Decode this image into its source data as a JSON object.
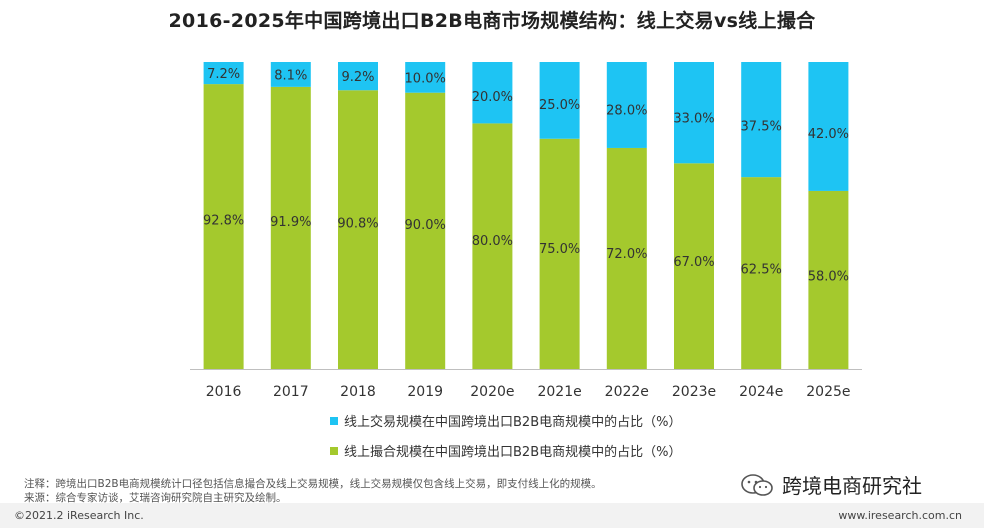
{
  "title": "2016-2025年中国跨境出口B2B电商市场规模结构：线上交易vs线上撮合",
  "chart_data": {
    "type": "bar",
    "stacked": true,
    "categories": [
      "2016",
      "2017",
      "2018",
      "2019",
      "2020e",
      "2021e",
      "2022e",
      "2023e",
      "2024e",
      "2025e"
    ],
    "series": [
      {
        "name": "线上撮合规模在中国跨境出口B2B电商规模中的占比（%）",
        "color": "#a4c92d",
        "values": [
          92.8,
          91.9,
          90.8,
          90.0,
          80.0,
          75.0,
          72.0,
          67.0,
          62.5,
          58.0
        ],
        "labels": [
          "92.8%",
          "91.9%",
          "90.8%",
          "90.0%",
          "80.0%",
          "75.0%",
          "72.0%",
          "67.0%",
          "62.5%",
          "58.0%"
        ]
      },
      {
        "name": "线上交易规模在中国跨境出口B2B电商规模中的占比（%）",
        "color": "#1ec4f3",
        "values": [
          7.2,
          8.1,
          9.2,
          10.0,
          20.0,
          25.0,
          28.0,
          33.0,
          37.5,
          42.0
        ],
        "labels": [
          "7.2%",
          "8.1%",
          "9.2%",
          "10.0%",
          "20.0%",
          "25.0%",
          "28.0%",
          "33.0%",
          "37.5%",
          "42.0%"
        ]
      }
    ],
    "ylim": [
      0,
      100
    ]
  },
  "legend": {
    "trade": "线上交易规模在中国跨境出口B2B电商规模中的占比（%）",
    "match": "线上撮合规模在中国跨境出口B2B电商规模中的占比（%）"
  },
  "notes": {
    "line1": "注释：跨境出口B2B电商规模统计口径包括信息撮合及线上交易规模，线上交易规模仅包含线上交易，即支付线上化的规模。",
    "line2": "来源：综合专家访谈，艾瑞咨询研究院自主研究及绘制。"
  },
  "brand": {
    "name": "跨境电商研究社"
  },
  "footer": {
    "copyright": "©2021.2 iResearch Inc.",
    "site": "www.iresearch.com.cn"
  },
  "colors": {
    "match": "#a4c92d",
    "trade": "#1ec4f3"
  },
  "icons": {
    "brand": "wechat-icon"
  }
}
